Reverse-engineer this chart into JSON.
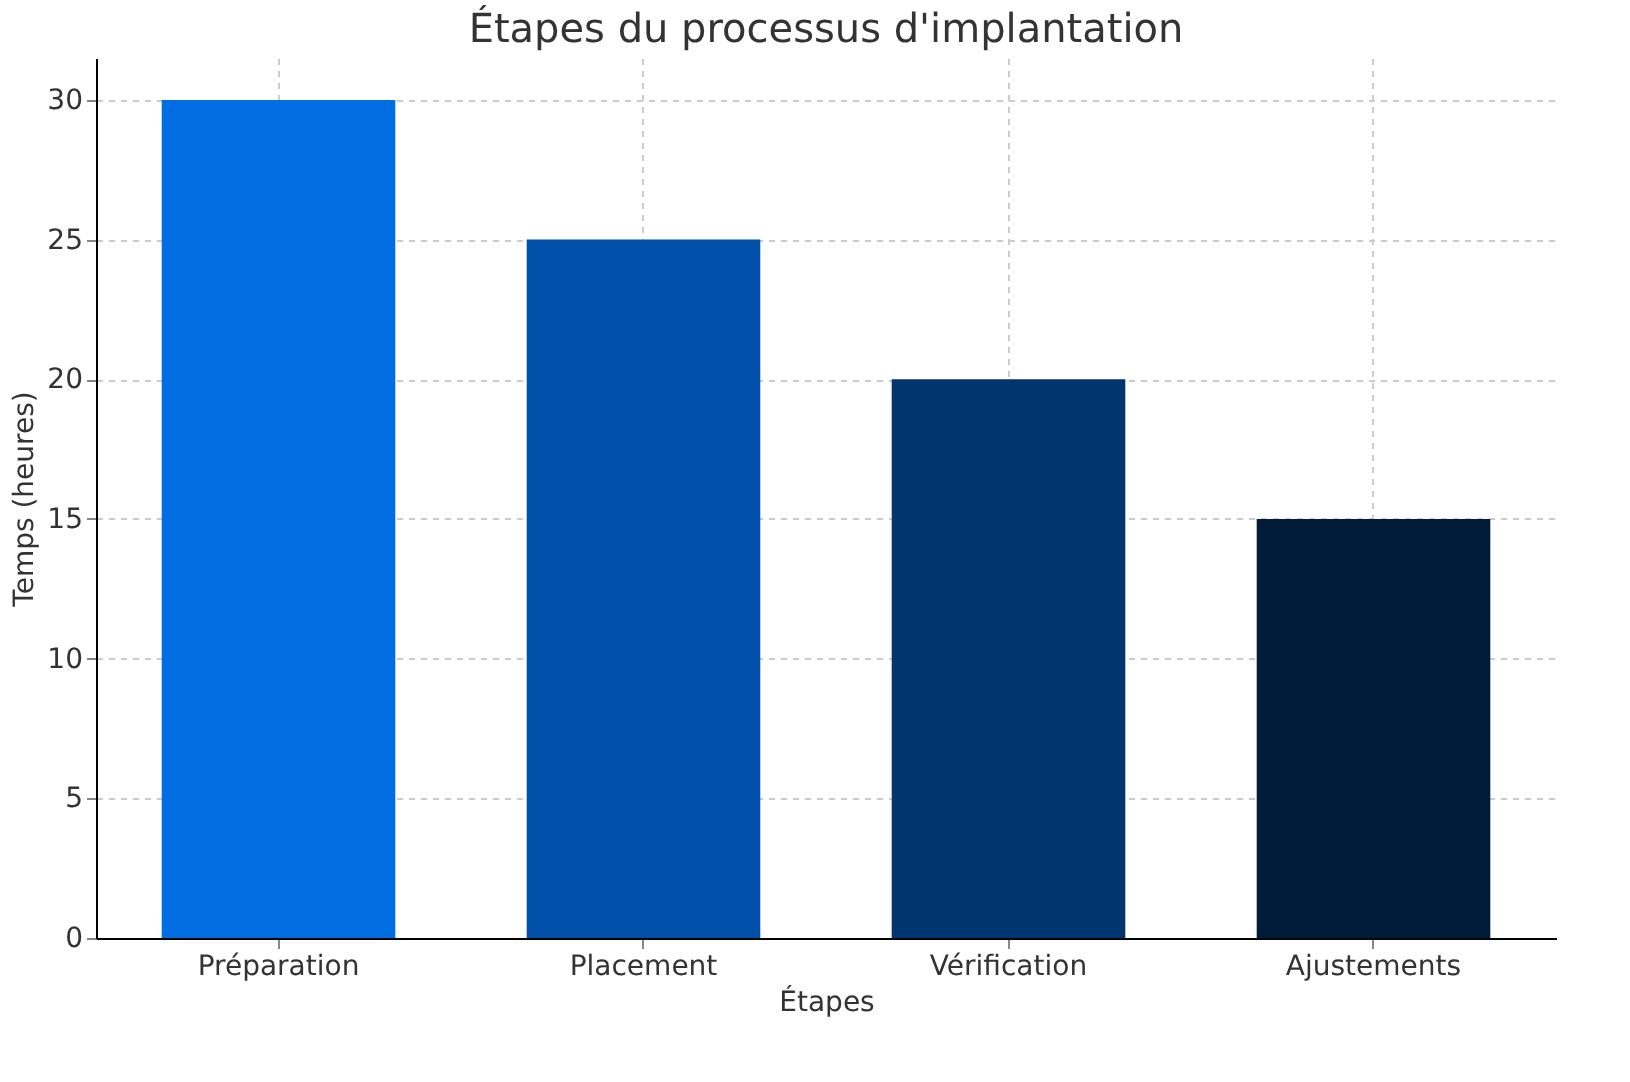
{
  "chart_data": {
    "type": "bar",
    "title": "Étapes du processus d'implantation",
    "xlabel": "Étapes",
    "ylabel": "Temps (heures)",
    "categories": [
      "Préparation",
      "Placement",
      "Vérification",
      "Ajustements"
    ],
    "values": [
      30,
      25,
      20,
      15
    ],
    "colors": [
      "#006de2",
      "#0050aa",
      "#003570",
      "#001c38"
    ],
    "ylim": [
      0,
      31.5
    ],
    "yticks": [
      0,
      5,
      10,
      15,
      20,
      25,
      30
    ],
    "grid": true
  }
}
